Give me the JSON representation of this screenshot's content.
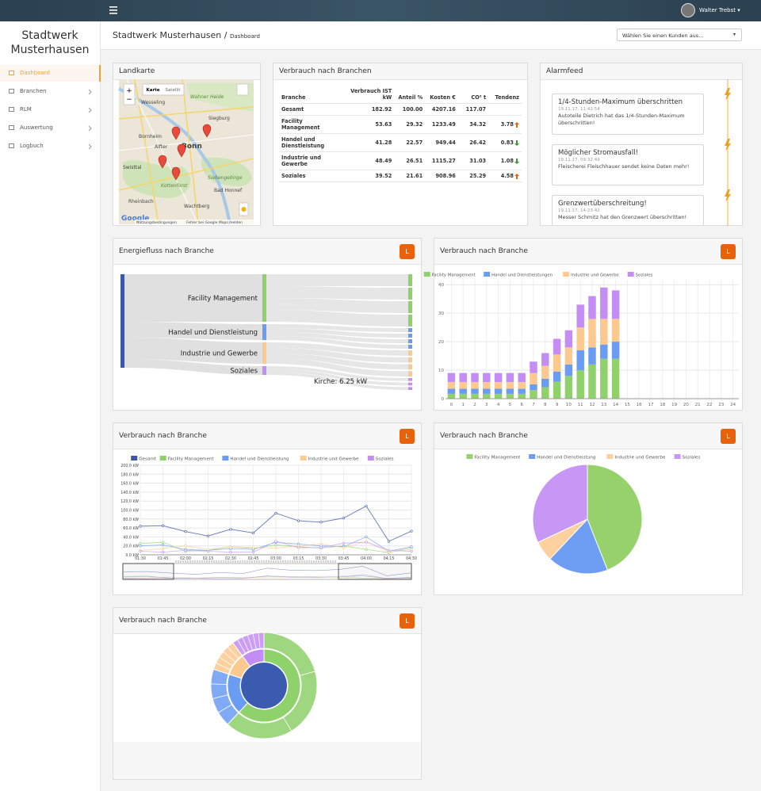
{
  "topbar": {
    "user": "Walter Trebst"
  },
  "sidebar": {
    "brand": "Stadtwerk Musterhausen",
    "nav": [
      "Dashboard",
      "Branchen",
      "RLM",
      "Auswertung",
      "Logbuch"
    ]
  },
  "header": {
    "title": "Stadtwerk Musterhausen",
    "separator": "/",
    "subtitle": "Dashboard",
    "select": "Wählen Sie einen Kunden aus..."
  },
  "map": {
    "title": "Landkarte",
    "zoom": [
      "+",
      "−"
    ],
    "buttons": [
      "Karte",
      "Satellit"
    ],
    "places": [
      "Wesseling",
      "Bonn",
      "Siegburg",
      "Bornheim",
      "Alfter",
      "Swisttal",
      "Kottenforst",
      "Siebengebirge",
      "Bad Honnef",
      "Rheinbach",
      "Wachtberg",
      "Wahner Heide"
    ],
    "footer": [
      "Nutzungsbedingungen",
      "Fehler bei Google Maps melden"
    ],
    "logo": "Google"
  },
  "table": {
    "title": "Verbrauch nach Branchen",
    "header": [
      "Branche",
      "Verbrauch IST kW",
      "Anteil %",
      "Kosten €",
      "CO² t",
      "Tendenz"
    ],
    "rows": [
      [
        "Gesamt",
        "182.92",
        "100.00",
        "4207.16",
        "117.07"
      ],
      [
        "Facility Management",
        "53.63",
        "29.32",
        "1233.49",
        "34.32",
        "3.78"
      ],
      [
        "Handel und Dienstleistung",
        "41.28",
        "22.57",
        "949.44",
        "26.42",
        "0.83"
      ],
      [
        "Industrie und Gewerbe",
        "48.49",
        "26.51",
        "1115.27",
        "31.03",
        "1.08"
      ],
      [
        "Soziales",
        "39.52",
        "21.61",
        "908.96",
        "25.29",
        "4.58"
      ]
    ],
    "trends": [
      null,
      "up",
      "down",
      "down",
      "up"
    ]
  },
  "alarm": {
    "title": "Alarmfeed",
    "items": [
      {
        "title": "1/4-Stunden-Maximum überschritten",
        "time": "19.11.17, 11:42:54",
        "text": "Autoteile Dietrich hat das 1/4-Stunden-Maximum überschritten!"
      },
      {
        "title": "Möglicher Stromausfall!",
        "time": "19.11.17, 09:32:49",
        "text": "Fleischerei Fleischhauer sendet keine Daten mehr!"
      },
      {
        "title": "Grenzwertüberschreitung!",
        "time": "19.11.17, 14:23:42",
        "text": "Messer Schmitz hat den Grenzwert überschritten!"
      }
    ]
  },
  "sankey": {
    "title": "Energiefluss nach Branche",
    "button": "L",
    "type": "sankey",
    "nodes": [
      {
        "name": "Facility Management",
        "value": 60,
        "color": "#8fd16a"
      },
      {
        "name": "Handel und Dienstleistung",
        "value": 20,
        "color": "#6a9cf4"
      },
      {
        "name": "Industrie und Gewerbe",
        "value": 27,
        "color": "#fdc98f"
      },
      {
        "name": "Soziales",
        "value": 11,
        "color": "#c48df5"
      }
    ],
    "source_color": "#3d58a8",
    "tooltip": "Kirche: 6.25 kW"
  },
  "stacked": {
    "title": "Verbrauch nach Branche",
    "button": "L",
    "type": "bar",
    "categories": [
      0,
      1,
      2,
      3,
      4,
      5,
      6,
      7,
      8,
      9,
      10,
      11,
      12,
      13,
      14,
      15,
      16,
      17,
      18,
      19,
      20,
      21,
      22,
      23,
      24
    ],
    "series": [
      {
        "name": "Facility Management",
        "color": "#8fd16a",
        "values": [
          1.7,
          1.7,
          1.7,
          1.7,
          1.7,
          1.7,
          1.7,
          3,
          4,
          6,
          8,
          10,
          12,
          14,
          14,
          null,
          null,
          null,
          null,
          null,
          null,
          null,
          null,
          null,
          null
        ]
      },
      {
        "name": "Handel und Dienstleistungen",
        "color": "#6a9cf4",
        "values": [
          1.8,
          1.8,
          1.8,
          1.8,
          1.8,
          1.8,
          1.8,
          2,
          3,
          3.5,
          4,
          7,
          6,
          5,
          6,
          null,
          null,
          null,
          null,
          null,
          null,
          null,
          null,
          null,
          null
        ]
      },
      {
        "name": "Industrie und Gewerbe",
        "color": "#fdc98f",
        "values": [
          2.3,
          2.3,
          2.3,
          2.3,
          2.3,
          2.3,
          2.3,
          4,
          4.5,
          6,
          6,
          8,
          10,
          9,
          8,
          null,
          null,
          null,
          null,
          null,
          null,
          null,
          null,
          null,
          null
        ]
      },
      {
        "name": "Soziales",
        "color": "#c48df5",
        "values": [
          3.2,
          3.2,
          3.2,
          3.2,
          3.2,
          3.2,
          3.2,
          4,
          4.5,
          5.5,
          6,
          8,
          8,
          11,
          10,
          null,
          null,
          null,
          null,
          null,
          null,
          null,
          null,
          null,
          null
        ]
      }
    ],
    "ylim": [
      0,
      42
    ],
    "yticks": [
      0,
      10,
      20,
      30,
      40
    ],
    "grid": true
  },
  "line": {
    "title": "Verbrauch nach Branche",
    "button": "L",
    "type": "line",
    "categories": [
      "01:30",
      "01:45",
      "02:00",
      "02:15",
      "02:30",
      "02:45",
      "03:00",
      "03:15",
      "03:30",
      "03:45",
      "04:00",
      "04:15",
      "04:30"
    ],
    "series": [
      {
        "name": "Gesamt",
        "color": "#3d58a8",
        "values": [
          64,
          65,
          52,
          42,
          57,
          49,
          93,
          76,
          73,
          82,
          109,
          30,
          53
        ]
      },
      {
        "name": "Facility Management",
        "color": "#8fd16a",
        "values": [
          25,
          28,
          8,
          10,
          18,
          14,
          22,
          18,
          15,
          20,
          12,
          5,
          16
        ]
      },
      {
        "name": "Handel und Dienstleistung",
        "color": "#6a9cf4",
        "values": [
          20,
          22,
          12,
          10,
          14,
          12,
          28,
          24,
          20,
          18,
          40,
          8,
          18
        ]
      },
      {
        "name": "Industrie und Gewerbe",
        "color": "#fdc98f",
        "values": [
          10,
          14,
          20,
          12,
          18,
          16,
          15,
          20,
          24,
          16,
          30,
          6,
          12
        ]
      },
      {
        "name": "Soziales",
        "color": "#c48df5",
        "values": [
          8,
          6,
          10,
          8,
          6,
          6,
          30,
          16,
          16,
          26,
          28,
          10,
          8
        ]
      }
    ],
    "ylim": [
      0,
      200
    ],
    "yticks": [
      {
        "value": 0,
        "label": "0.0 kW"
      },
      {
        "value": 20,
        "label": "20.0 kW"
      },
      {
        "value": 40,
        "label": "40.0 kW"
      },
      {
        "value": 60,
        "label": "60.0 kW"
      },
      {
        "value": 80,
        "label": "80.0 kW"
      },
      {
        "value": 100,
        "label": "100.0 kW"
      },
      {
        "value": 120,
        "label": "120.0 kW"
      },
      {
        "value": 140,
        "label": "140.0 kW"
      },
      {
        "value": 160,
        "label": "160.0 kW"
      },
      {
        "value": 180,
        "label": "180.0 kW"
      },
      {
        "value": 200,
        "label": "200.0 kW"
      }
    ],
    "grid": true
  },
  "pie": {
    "title": "Verbrauch nach Branche",
    "button": "L",
    "type": "pie",
    "categories": [
      "Facility Management",
      "Handel und Dienstleistung",
      "Industrie und Gewerbe",
      "Soziales"
    ],
    "values": [
      44,
      18,
      6,
      32
    ],
    "colors": [
      "#96d16b",
      "#6d9ef4",
      "#fdd0a0",
      "#c896f4"
    ]
  },
  "sunburst": {
    "title": "Verbrauch nach Branche",
    "button": "L",
    "type": "sunburst",
    "values": [
      62,
      18,
      10,
      10
    ],
    "colors": [
      "#8fd16a",
      "#6a9cf4",
      "#fdc98f",
      "#c48df5"
    ],
    "center_color": "#3a5bb0"
  }
}
